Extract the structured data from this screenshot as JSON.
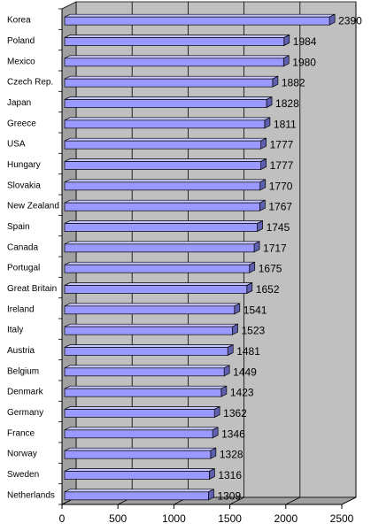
{
  "chart_data": {
    "type": "bar",
    "orientation": "horizontal",
    "categories": [
      "Korea",
      "Poland",
      "Mexico",
      "Czech Rep.",
      "Japan",
      "Greece",
      "USA",
      "Hungary",
      "Slovakia",
      "New Zealand",
      "Spain",
      "Canada",
      "Portugal",
      "Great Britain",
      "Ireland",
      "Italy",
      "Austria",
      "Belgium",
      "Denmark",
      "Germany",
      "France",
      "Norway",
      "Sweden",
      "Netherlands"
    ],
    "values": [
      2390,
      1984,
      1980,
      1882,
      1828,
      1811,
      1777,
      1777,
      1770,
      1767,
      1745,
      1717,
      1675,
      1652,
      1541,
      1523,
      1481,
      1449,
      1423,
      1362,
      1346,
      1328,
      1316,
      1309
    ],
    "title": "",
    "xlabel": "",
    "ylabel": "",
    "xlim": [
      0,
      2500
    ],
    "xticks": [
      "0",
      "500",
      "1000",
      "1500",
      "2000",
      "2500"
    ],
    "grid": "vertical",
    "legend": "none",
    "colors": {
      "bar_front": "#9999ff",
      "bar_top": "#c8c8ff",
      "bar_side": "#6060b0",
      "wall": "#c0c0c0",
      "floor": "#a0a0a0"
    }
  }
}
